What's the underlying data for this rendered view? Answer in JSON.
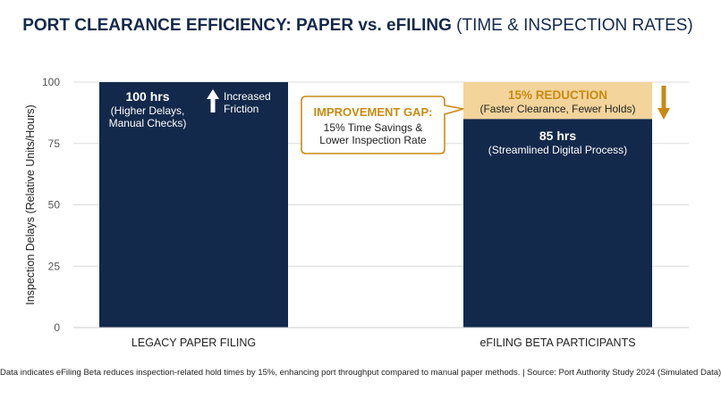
{
  "title_bold": "PORT CLEARANCE EFFICIENCY: PAPER vs. eFILING",
  "title_light": "(TIME & INSPECTION RATES)",
  "footnote": "Data indicates eFiling Beta reduces inspection-related hold times by 15%, enhancing port throughput compared to manual paper methods. | Source: Port Authority Study 2024 (Simulated Data)",
  "colors": {
    "bar": "#13294b",
    "highlight": "#f3d49b",
    "accent": "#c98a12",
    "grid": "#dcdcdc"
  },
  "chart_data": {
    "type": "bar",
    "categories": [
      "LEGACY PAPER FILING",
      "eFILING BETA PARTICIPANTS"
    ],
    "values": [
      100,
      85
    ],
    "ylabel": "Inspection Delays (Relative Units/Hours)",
    "ylim": [
      0,
      100
    ],
    "yticks": [
      0,
      25,
      50,
      75,
      100
    ],
    "grid": true,
    "reduction_segment": {
      "from": 85,
      "to": 100
    },
    "data_labels": [
      {
        "value": "100 hrs",
        "lines": [
          "(Higher Delays,",
          "Manual Checks)"
        ]
      },
      {
        "value": "85 hrs",
        "lines": [
          "(Streamlined Digital Process)"
        ]
      }
    ],
    "annotations": {
      "friction": {
        "lines": [
          "Increased",
          "Friction"
        ],
        "icon": "arrow-up-icon"
      },
      "reduction": {
        "title": "15% REDUCTION",
        "subtitle": "(Faster Clearance, Fewer Holds)",
        "icon": "arrow-down-icon"
      },
      "gap": {
        "title": "IMPROVEMENT GAP:",
        "lines": [
          "15% Time Savings &",
          "Lower Inspection Rate"
        ]
      }
    }
  }
}
